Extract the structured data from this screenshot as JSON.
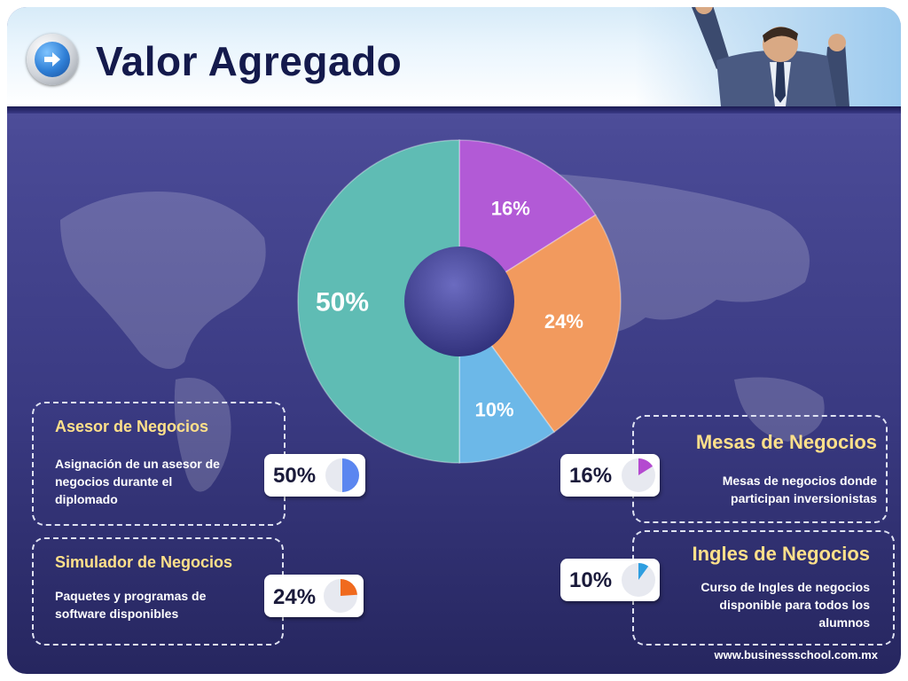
{
  "title": "Valor Agregado",
  "footer": "www.businessschool.com.mx",
  "chart_data": {
    "type": "pie",
    "title": "",
    "values": [
      16,
      24,
      10,
      50
    ],
    "labels": [
      "16%",
      "24%",
      "10%",
      "50%"
    ],
    "colors": [
      "#b25ad6",
      "#f29a5e",
      "#6cb8e8",
      "#5fbcb4"
    ]
  },
  "cards": [
    {
      "title": "Asesor de Negocios",
      "text": [
        "Asignación de un asesor de",
        "negocios durante el",
        "diplomado"
      ],
      "pct_label": "50%",
      "pct": 50,
      "color": "#5b86f0",
      "icon": "pie-wedge-icon"
    },
    {
      "title": "Simulador de Negocios",
      "text": [
        "Paquetes y programas de",
        "software disponibles"
      ],
      "pct_label": "24%",
      "pct": 24,
      "color": "#f06a1e",
      "icon": "pie-wedge-icon"
    },
    {
      "title": "Mesas de Negocios",
      "text": [
        "Mesas de negocios donde",
        "participan inversionistas"
      ],
      "pct_label": "16%",
      "pct": 16,
      "color": "#b44ad0",
      "icon": "pie-wedge-icon"
    },
    {
      "title": "Ingles de Negocios",
      "text": [
        "Curso de Ingles de negocios",
        "disponible para todos los",
        "alumnos"
      ],
      "pct_label": "10%",
      "pct": 10,
      "color": "#2e9ee0",
      "icon": "pie-wedge-icon"
    }
  ],
  "icons": {
    "nav": "arrow-right-icon",
    "hero": "person-celebrating-icon",
    "background": "world-map-icon"
  }
}
